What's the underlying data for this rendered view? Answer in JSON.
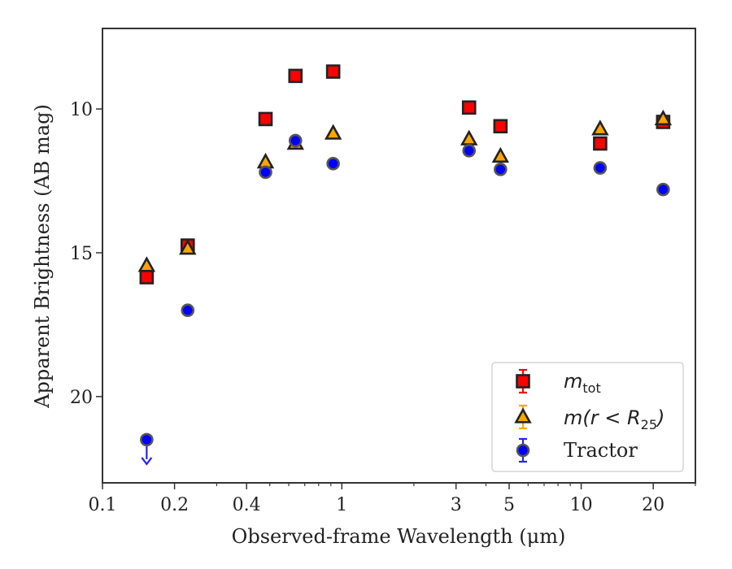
{
  "chart_data": {
    "type": "scatter",
    "xlabel": "Observed-frame Wavelength (μm)",
    "ylabel": "Apparent Brightness (AB mag)",
    "xscale": "log",
    "xlim": [
      0.1,
      30
    ],
    "ylim": [
      23,
      7.2
    ],
    "y_inverted": true,
    "x_ticks": [
      {
        "value": 0.1,
        "label": "0.1"
      },
      {
        "value": 0.2,
        "label": "0.2"
      },
      {
        "value": 0.4,
        "label": "0.4"
      },
      {
        "value": 1,
        "label": "1"
      },
      {
        "value": 3,
        "label": "3"
      },
      {
        "value": 5,
        "label": "5"
      },
      {
        "value": 10,
        "label": "10"
      },
      {
        "value": 20,
        "label": "20"
      }
    ],
    "y_ticks": [
      {
        "value": 10,
        "label": "10"
      },
      {
        "value": 15,
        "label": "15"
      },
      {
        "value": 20,
        "label": "20"
      }
    ],
    "grid": false,
    "legend_position": "bottom-right",
    "series": [
      {
        "name": "m_tot",
        "legend_label": {
          "base": "m",
          "sub": "tot"
        },
        "marker": "square",
        "color": "#ff0000",
        "edge_color": "#222222",
        "points": [
          {
            "x": 0.153,
            "y": 15.85
          },
          {
            "x": 0.227,
            "y": 14.75
          },
          {
            "x": 0.48,
            "y": 10.35
          },
          {
            "x": 0.64,
            "y": 8.85
          },
          {
            "x": 0.92,
            "y": 8.7
          },
          {
            "x": 3.4,
            "y": 9.95
          },
          {
            "x": 4.6,
            "y": 10.6
          },
          {
            "x": 12.0,
            "y": 11.2
          },
          {
            "x": 22.0,
            "y": 10.45
          }
        ]
      },
      {
        "name": "m(r<R25)",
        "legend_label": {
          "base": "m(r < R",
          "sub": "25",
          "tail": ")"
        },
        "marker": "triangle",
        "color": "#ffa500",
        "edge_color": "#222222",
        "points": [
          {
            "x": 0.153,
            "y": 15.45
          },
          {
            "x": 0.227,
            "y": 14.85
          },
          {
            "x": 0.48,
            "y": 11.85
          },
          {
            "x": 0.64,
            "y": 11.2
          },
          {
            "x": 0.92,
            "y": 10.85
          },
          {
            "x": 3.4,
            "y": 11.05
          },
          {
            "x": 4.6,
            "y": 11.65
          },
          {
            "x": 12.0,
            "y": 10.7
          },
          {
            "x": 22.0,
            "y": 10.35
          }
        ]
      },
      {
        "name": "Tractor",
        "legend_label": {
          "base": "Tractor"
        },
        "marker": "circle",
        "color": "#0000ff",
        "edge_color": "#555555",
        "points": [
          {
            "x": 0.153,
            "y": 21.5,
            "upper_limit": true
          },
          {
            "x": 0.227,
            "y": 17.0
          },
          {
            "x": 0.48,
            "y": 12.2
          },
          {
            "x": 0.64,
            "y": 11.1
          },
          {
            "x": 0.92,
            "y": 11.9
          },
          {
            "x": 3.4,
            "y": 11.45
          },
          {
            "x": 4.6,
            "y": 12.1
          },
          {
            "x": 12.0,
            "y": 12.05
          },
          {
            "x": 22.0,
            "y": 12.8
          }
        ]
      }
    ]
  }
}
